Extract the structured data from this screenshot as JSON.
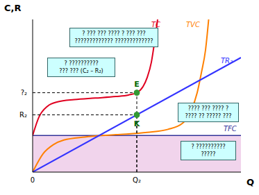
{
  "chart_data": {
    "type": "line",
    "x_label": "Q",
    "y_label": "C,R",
    "xlim": [
      0,
      100
    ],
    "ylim": [
      0,
      100
    ],
    "xticks": [
      0,
      {
        "value": 50,
        "label": "Q₂"
      }
    ],
    "yticks": [
      {
        "value": 37.5,
        "label": "R₂"
      },
      {
        "value": 52,
        "label": "?₂"
      }
    ],
    "series": [
      {
        "name": "TC",
        "type": "line",
        "color": "#e00020",
        "x": [
          0,
          3,
          7,
          12,
          20,
          30,
          40,
          46,
          50,
          53,
          55,
          57,
          58.5,
          60
        ],
        "values": [
          24,
          36,
          43,
          46,
          47.5,
          48.5,
          49.5,
          50.5,
          52,
          56,
          62,
          72,
          85,
          100
        ]
      },
      {
        "name": "TVC",
        "type": "line",
        "color": "#ff8000",
        "x": [
          0,
          5,
          10,
          15,
          25,
          40,
          55,
          65,
          72,
          76,
          79,
          81,
          83,
          84.5
        ],
        "values": [
          0,
          12,
          18,
          21,
          23,
          24.5,
          26,
          28,
          32,
          40,
          52,
          65,
          80,
          100
        ]
      },
      {
        "name": "TR₂",
        "type": "line",
        "color": "#3333ff",
        "x": [
          0,
          100
        ],
        "values": [
          0,
          75
        ]
      },
      {
        "name": "TFC",
        "type": "area",
        "color": "#333399",
        "x": [
          0,
          100
        ],
        "values": [
          24,
          24
        ]
      }
    ],
    "points": [
      {
        "name": "E",
        "x": 50,
        "y": 52,
        "color": "#339933"
      },
      {
        "name": "K",
        "x": 50,
        "y": 37.5,
        "color": "#339933"
      }
    ],
    "annotations": [
      [
        "? ??? ??? ???? ? ??? ???",
        "????????????? ?????????????"
      ],
      [
        "? ??????????",
        "??? ??? (C₂ – R₂)"
      ],
      [
        "???? ??? ???? ?",
        "???? ?? ????? ???"
      ],
      [
        "? ??????????",
        "?????"
      ]
    ]
  }
}
